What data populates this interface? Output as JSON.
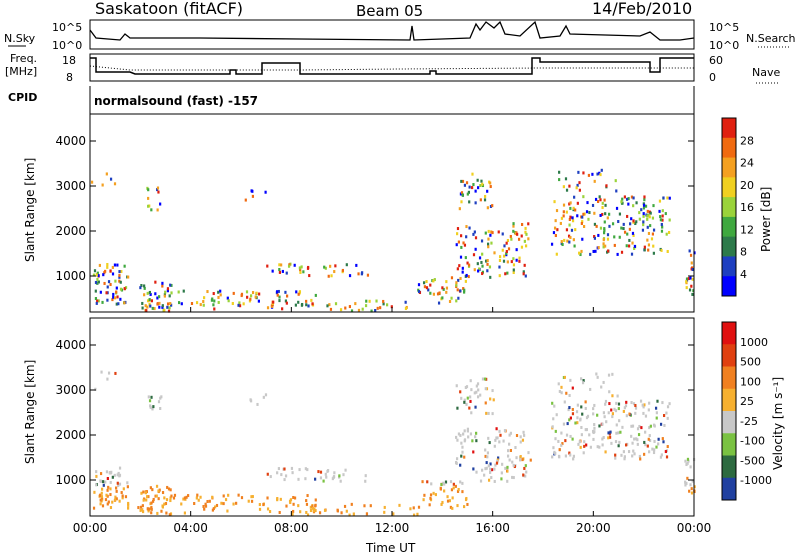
{
  "header": {
    "site": "Saskatoon (fitACF)",
    "beam": "Beam 05",
    "date": "14/Feb/2010"
  },
  "top_panels": {
    "nsky_label": "N.Sky",
    "nsky_ticks": [
      "10^5",
      "10^0"
    ],
    "nsearch_label": "N.Search",
    "nsearch_ticks": [
      "10^5",
      "10^0"
    ],
    "freq_label_1": "Freq.",
    "freq_label_2": "[MHz]",
    "freq_ticks": [
      "18",
      "8"
    ],
    "nave_label": "Nave",
    "nave_ticks": [
      "60",
      "0"
    ],
    "cpid_label": "CPID",
    "cpid_text": "normalsound (fast) -157"
  },
  "chart_data": [
    {
      "type": "heatmap",
      "name": "power",
      "ylabel": "Slant Range [km]",
      "yticks": [
        "4000",
        "3000",
        "2000",
        "1000"
      ],
      "ylim": [
        200,
        4600
      ],
      "colorbar_label": "Power [dB]",
      "colorbar_ticks": [
        "28",
        "24",
        "20",
        "16",
        "12",
        "8",
        "4"
      ],
      "colors": [
        "#0000ff",
        "#1e3fc0",
        "#2d7a4a",
        "#3fa83f",
        "#9ad33a",
        "#f0d020",
        "#f4a020",
        "#f06a10",
        "#e02010"
      ]
    },
    {
      "type": "heatmap",
      "name": "velocity",
      "ylabel": "Slant Range [km]",
      "yticks": [
        "4000",
        "3000",
        "2000",
        "1000"
      ],
      "ylim": [
        200,
        4600
      ],
      "colorbar_label": "Velocity [m s⁻¹]",
      "colorbar_ticks": [
        "1000",
        "500",
        "100",
        "25",
        "-25",
        "-100",
        "-500",
        "-1000"
      ],
      "colors": [
        "#2040a0",
        "#2d6a40",
        "#7ac242",
        "#c8c8c8",
        "#f6b030",
        "#f08020",
        "#e04010",
        "#e01010"
      ]
    }
  ],
  "x_axis": {
    "xlabel": "Time UT",
    "ticks": [
      "00:00",
      "04:00",
      "08:00",
      "12:00",
      "16:00",
      "20:00",
      "00:00"
    ]
  }
}
